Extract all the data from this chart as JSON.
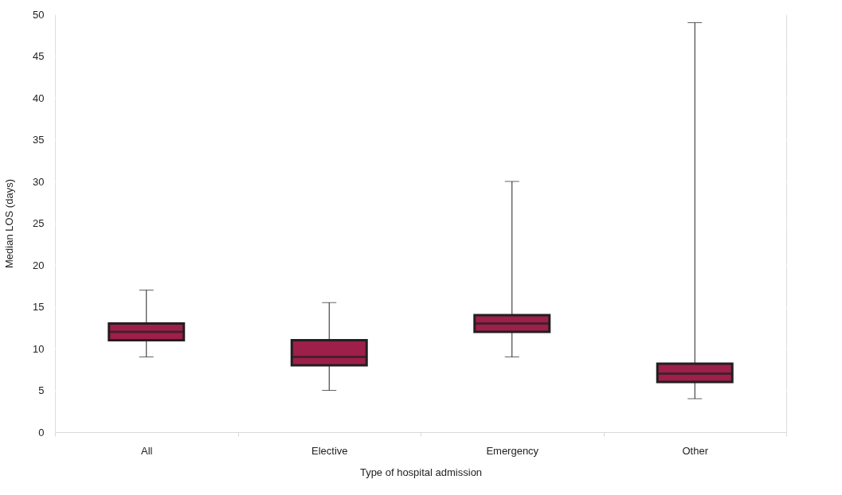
{
  "chart_data": {
    "type": "box",
    "xlabel": "Type of hospital admission",
    "ylabel": "Median LOS (days)",
    "categories": [
      "All",
      "Elective",
      "Emergency",
      "Other"
    ],
    "boxes": [
      {
        "low": 9,
        "q1": 11,
        "median": 12,
        "q3": 13,
        "high": 17
      },
      {
        "low": 5,
        "q1": 8,
        "median": 9,
        "q3": 11,
        "high": 15.5
      },
      {
        "low": 9,
        "q1": 12,
        "median": 13,
        "q3": 14,
        "high": 30
      },
      {
        "low": 4,
        "q1": 6,
        "median": 7,
        "q3": 8.2,
        "high": 49
      }
    ],
    "color": "#9e1f4a",
    "ylim": [
      0,
      50
    ],
    "yticks": [
      0,
      5,
      10,
      15,
      20,
      25,
      30,
      35,
      40,
      45,
      50
    ],
    "grid": "y"
  }
}
